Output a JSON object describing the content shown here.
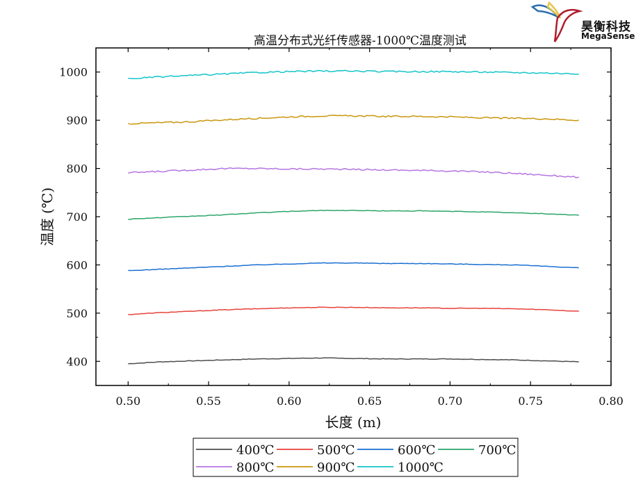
{
  "logo": {
    "name_cn": "昊衡科技",
    "name_en": "MegaSense",
    "colors": [
      "#2b6cb0",
      "#e6c34a",
      "#b01c2e"
    ]
  },
  "chart_data": {
    "type": "line",
    "title": "高温分布式光纤传感器-1000℃温度测试",
    "xlabel": "长度 (m)",
    "ylabel": "温度 (℃)",
    "xlim": [
      0.48,
      0.8
    ],
    "ylim": [
      350,
      1050
    ],
    "xticks": [
      "0.50",
      "0.55",
      "0.60",
      "0.65",
      "0.70",
      "0.75",
      "0.80"
    ],
    "yticks": [
      "400",
      "500",
      "600",
      "700",
      "800",
      "900",
      "1000"
    ],
    "grid": false,
    "legend": "bottom",
    "x": [
      0.5,
      0.52,
      0.54,
      0.56,
      0.58,
      0.6,
      0.62,
      0.64,
      0.66,
      0.68,
      0.7,
      0.72,
      0.74,
      0.76,
      0.78
    ],
    "series": [
      {
        "name": "400℃",
        "color": "#4d4d4d",
        "values": [
          395,
          399,
          401,
          403,
          405,
          406,
          407,
          406,
          405,
          405,
          405,
          404,
          403,
          401,
          399
        ]
      },
      {
        "name": "500℃",
        "color": "#e8413a",
        "values": [
          497,
          501,
          504,
          507,
          509,
          511,
          512,
          512,
          511,
          511,
          510,
          510,
          509,
          507,
          504
        ]
      },
      {
        "name": "600℃",
        "color": "#1a6fd1",
        "values": [
          588,
          591,
          594,
          597,
          600,
          602,
          604,
          604,
          603,
          603,
          602,
          601,
          600,
          597,
          594
        ]
      },
      {
        "name": "700℃",
        "color": "#2ca66b",
        "values": [
          695,
          698,
          701,
          704,
          708,
          711,
          713,
          713,
          712,
          712,
          711,
          710,
          708,
          706,
          703
        ]
      },
      {
        "name": "800℃",
        "color": "#b574e3",
        "values": [
          791,
          794,
          797,
          800,
          800,
          799,
          799,
          798,
          797,
          796,
          795,
          793,
          790,
          786,
          782
        ]
      },
      {
        "name": "900℃",
        "color": "#c9960c",
        "values": [
          893,
          895,
          897,
          901,
          904,
          907,
          909,
          909,
          908,
          908,
          907,
          905,
          904,
          903,
          900
        ]
      },
      {
        "name": "1000℃",
        "color": "#12c4c9",
        "values": [
          986,
          990,
          993,
          996,
          999,
          1001,
          1002,
          1002,
          1001,
          1001,
          1001,
          1000,
          999,
          998,
          996
        ]
      }
    ]
  }
}
